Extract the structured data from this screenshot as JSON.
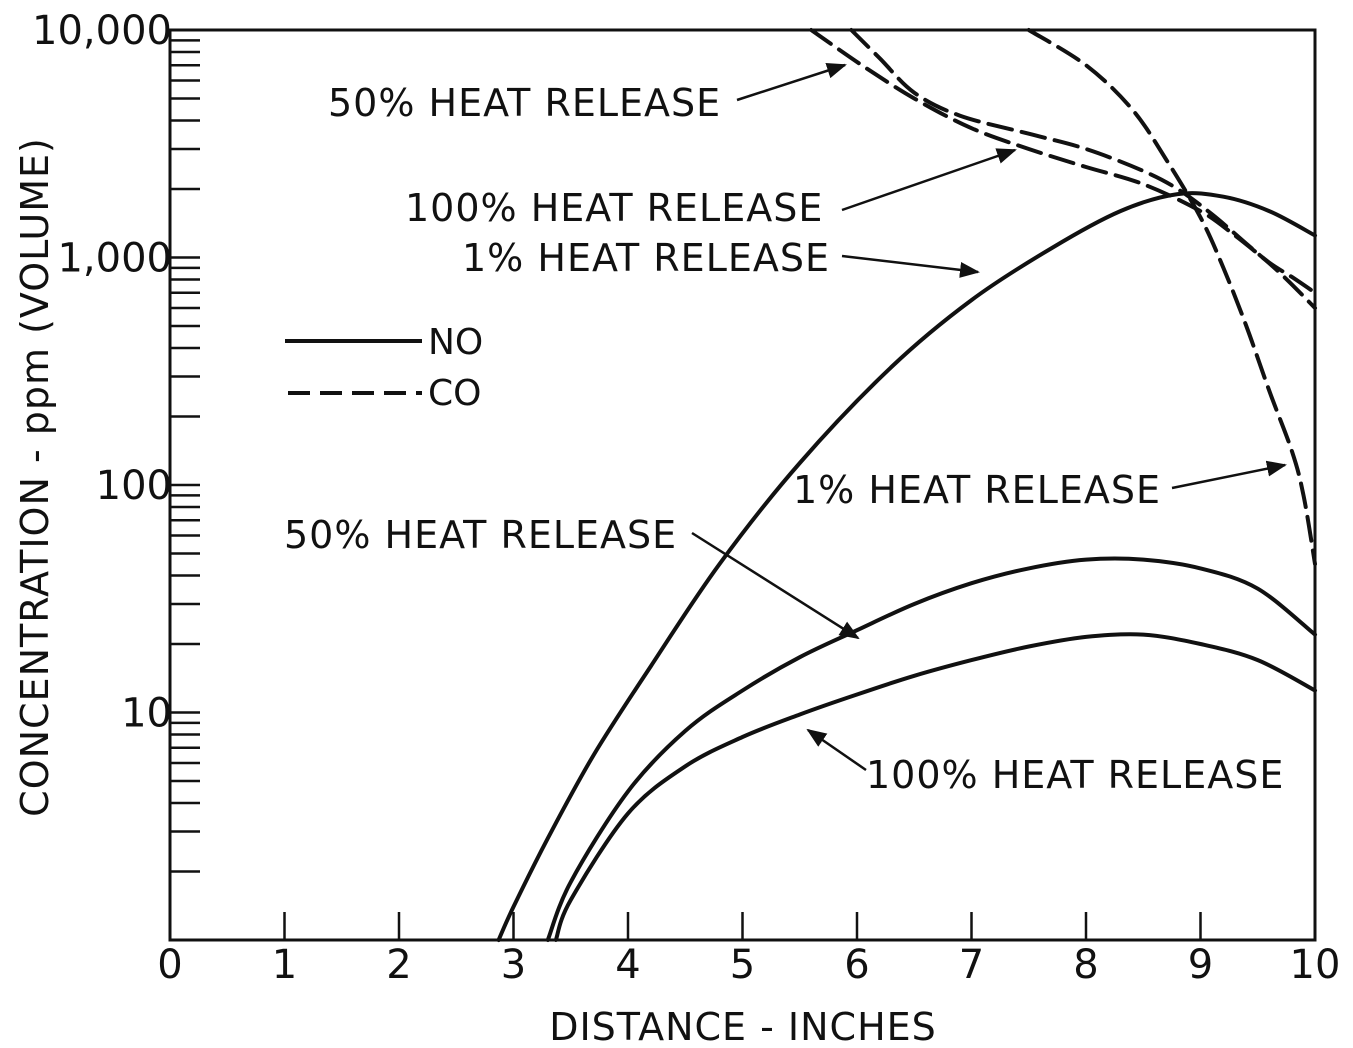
{
  "chart_data": {
    "type": "line",
    "title": "",
    "xlabel": "DISTANCE - INCHES",
    "ylabel": "CONCENTRATION - ppm (VOLUME)",
    "xlim": [
      0,
      10
    ],
    "ylim": [
      1,
      10000
    ],
    "y_scale": "log",
    "grid": false,
    "legend_position": "left",
    "x_ticks": [
      "0",
      "1",
      "2",
      "3",
      "4",
      "5",
      "6",
      "7",
      "8",
      "9",
      "10"
    ],
    "y_ticks": [
      {
        "value": 10,
        "label": "10"
      },
      {
        "value": 100,
        "label": "100"
      },
      {
        "value": 1000,
        "label": "1,000"
      },
      {
        "value": 10000,
        "label": "10,000"
      }
    ],
    "legend": [
      {
        "label": "NO",
        "style": "solid"
      },
      {
        "label": "CO",
        "style": "dashed"
      }
    ],
    "series": [
      {
        "species": "NO",
        "style": "solid",
        "x": [
          2.87,
          3.0,
          3.3,
          3.7,
          4.2,
          4.8,
          5.5,
          6.3,
          7.0,
          7.7,
          8.3,
          8.8,
          9.2,
          9.6,
          10.0
        ],
        "y": [
          1.0,
          1.4,
          2.8,
          6.5,
          16,
          45,
          125,
          330,
          650,
          1100,
          1600,
          1900,
          1850,
          1600,
          1250
        ]
      },
      {
        "species": "NO",
        "style": "solid",
        "x": [
          3.3,
          3.5,
          4.0,
          4.5,
          5.0,
          5.5,
          6.0,
          6.5,
          7.0,
          7.5,
          8.0,
          8.5,
          9.0,
          9.5,
          10.0
        ],
        "y": [
          1.0,
          1.8,
          4.5,
          8.3,
          12.5,
          17.5,
          23,
          30,
          37,
          43,
          47,
          47,
          43,
          35,
          22
        ]
      },
      {
        "species": "NO",
        "style": "solid",
        "x": [
          3.37,
          3.5,
          4.0,
          4.5,
          5.0,
          5.5,
          6.0,
          6.5,
          7.0,
          7.5,
          8.0,
          8.5,
          9.0,
          9.5,
          10.0
        ],
        "y": [
          1.0,
          1.5,
          3.6,
          5.8,
          7.8,
          9.8,
          12,
          14.5,
          17,
          19.5,
          21.5,
          22,
          20,
          17,
          12.5
        ]
      },
      {
        "species": "CO",
        "style": "dashed",
        "x": [
          5.6,
          5.8,
          6.1,
          6.5,
          7.0,
          7.5,
          8.0,
          8.5,
          9.0,
          9.3,
          9.6,
          9.8,
          10.0
        ],
        "y": [
          10000,
          8500,
          6700,
          5000,
          3700,
          3000,
          2500,
          2100,
          1600,
          1250,
          950,
          820,
          700
        ]
      },
      {
        "species": "CO",
        "style": "dashed",
        "x": [
          5.95,
          6.2,
          6.5,
          6.9,
          7.5,
          8.0,
          8.5,
          8.8,
          9.1,
          9.4,
          9.7,
          10.0
        ],
        "y": [
          10000,
          7500,
          5300,
          4200,
          3500,
          3000,
          2400,
          2000,
          1550,
          1150,
          850,
          600
        ]
      },
      {
        "species": "CO",
        "style": "dashed",
        "x": [
          7.5,
          8.0,
          8.4,
          8.7,
          9.0,
          9.2,
          9.4,
          9.6,
          9.8,
          9.9,
          10.0
        ],
        "y": [
          10000,
          7000,
          4500,
          2700,
          1500,
          900,
          500,
          260,
          140,
          90,
          45
        ]
      }
    ],
    "annotations": [
      {
        "text": "50% HEAT RELEASE",
        "species": "CO"
      },
      {
        "text": "100% HEAT RELEASE",
        "species": "CO"
      },
      {
        "text": "1% HEAT RELEASE",
        "species": "NO"
      },
      {
        "text": "1% HEAT RELEASE",
        "species": "CO"
      },
      {
        "text": "50% HEAT RELEASE",
        "species": "NO"
      },
      {
        "text": "100% HEAT RELEASE",
        "species": "NO"
      }
    ],
    "colors": {
      "line": "#111111",
      "background": "#ffffff"
    }
  }
}
